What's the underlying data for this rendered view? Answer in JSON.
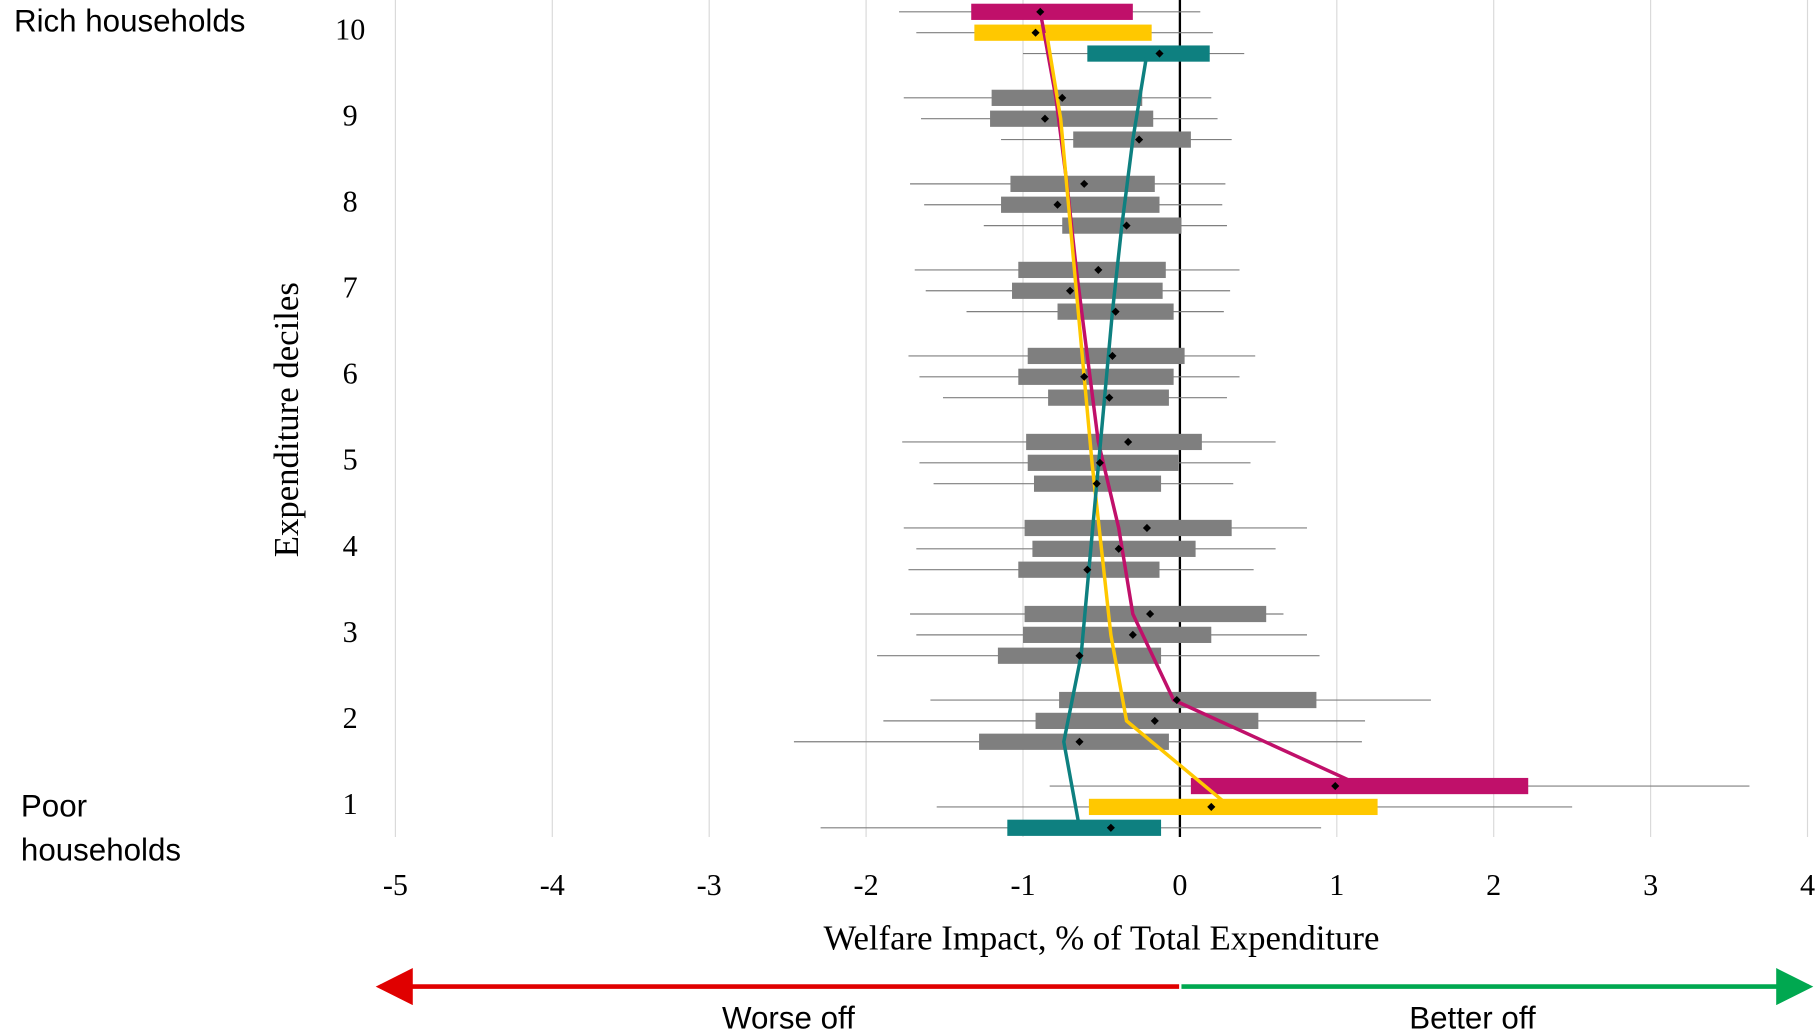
{
  "chart_data": {
    "type": "box",
    "xlabel": "Welfare Impact, % of Total Expenditure",
    "ylabel": "Expenditure deciles",
    "annotations": {
      "top": "Rich households",
      "bottom": [
        "Poor",
        "households"
      ],
      "left_arrow": "Worse off",
      "right_arrow": "Better off"
    },
    "categories": [
      "1",
      "2",
      "3",
      "4",
      "5",
      "6",
      "7",
      "8",
      "9",
      "10"
    ],
    "xlim": [
      -5,
      4
    ],
    "xticks": [
      -5,
      -4,
      -3,
      -2,
      -1,
      0,
      1,
      2,
      3,
      4
    ],
    "grid": true,
    "series": [
      {
        "colors": [
          "#c0106a",
          "#7f7f7f",
          "#7f7f7f",
          "#7f7f7f",
          "#7f7f7f",
          "#7f7f7f",
          "#7f7f7f",
          "#7f7f7f",
          "#7f7f7f",
          "#c0106a"
        ],
        "whisker_low": [
          -0.83,
          -1.59,
          -1.72,
          -1.76,
          -1.77,
          -1.73,
          -1.69,
          -1.72,
          -1.76,
          -1.79
        ],
        "box_low": [
          0.07,
          -0.77,
          -0.99,
          -0.99,
          -0.98,
          -0.97,
          -1.03,
          -1.08,
          -1.2,
          -1.33
        ],
        "mean": [
          0.99,
          -0.02,
          -0.19,
          -0.21,
          -0.33,
          -0.43,
          -0.52,
          -0.61,
          -0.75,
          -0.89
        ],
        "box_high": [
          2.22,
          0.87,
          0.55,
          0.33,
          0.14,
          0.03,
          -0.09,
          -0.16,
          -0.24,
          -0.3
        ],
        "whisker_high": [
          3.63,
          1.6,
          0.66,
          0.81,
          0.61,
          0.48,
          0.38,
          0.29,
          0.2,
          0.13
        ],
        "line_color": "#c0106a",
        "line_values": [
          1.16,
          -0.04,
          -0.3,
          -0.39,
          -0.52,
          -0.59,
          -0.66,
          -0.72,
          -0.79,
          -0.89
        ]
      },
      {
        "colors": [
          "#ffc800",
          "#7f7f7f",
          "#7f7f7f",
          "#7f7f7f",
          "#7f7f7f",
          "#7f7f7f",
          "#7f7f7f",
          "#7f7f7f",
          "#7f7f7f",
          "#ffc800"
        ],
        "whisker_low": [
          -1.55,
          -1.89,
          -1.68,
          -1.68,
          -1.66,
          -1.66,
          -1.62,
          -1.63,
          -1.65,
          -1.68
        ],
        "box_low": [
          -0.58,
          -0.92,
          -1.0,
          -0.94,
          -0.97,
          -1.03,
          -1.07,
          -1.14,
          -1.21,
          -1.31
        ],
        "mean": [
          0.2,
          -0.16,
          -0.3,
          -0.39,
          -0.51,
          -0.61,
          -0.7,
          -0.78,
          -0.86,
          -0.92
        ],
        "box_high": [
          1.26,
          0.5,
          0.2,
          0.1,
          -0.01,
          -0.04,
          -0.11,
          -0.13,
          -0.17,
          -0.18
        ],
        "whisker_high": [
          2.5,
          1.18,
          0.81,
          0.61,
          0.45,
          0.38,
          0.32,
          0.27,
          0.24,
          0.21
        ],
        "line_color": "#ffc800",
        "line_values": [
          0.32,
          -0.34,
          -0.44,
          -0.5,
          -0.56,
          -0.61,
          -0.66,
          -0.71,
          -0.76,
          -0.85
        ]
      },
      {
        "colors": [
          "#0e8080",
          "#7f7f7f",
          "#7f7f7f",
          "#7f7f7f",
          "#7f7f7f",
          "#7f7f7f",
          "#7f7f7f",
          "#7f7f7f",
          "#7f7f7f",
          "#0e8080"
        ],
        "whisker_low": [
          -2.29,
          -2.46,
          -1.93,
          -1.73,
          -1.57,
          -1.51,
          -1.36,
          -1.25,
          -1.14,
          -1.0
        ],
        "box_low": [
          -1.1,
          -1.28,
          -1.16,
          -1.03,
          -0.93,
          -0.84,
          -0.78,
          -0.75,
          -0.68,
          -0.59
        ],
        "mean": [
          -0.44,
          -0.64,
          -0.64,
          -0.59,
          -0.53,
          -0.45,
          -0.41,
          -0.34,
          -0.26,
          -0.13
        ],
        "box_high": [
          -0.12,
          -0.07,
          -0.12,
          -0.13,
          -0.12,
          -0.07,
          -0.04,
          0.01,
          0.07,
          0.19
        ],
        "whisker_high": [
          0.9,
          1.16,
          0.89,
          0.47,
          0.34,
          0.3,
          0.28,
          0.3,
          0.33,
          0.41
        ],
        "line_color": "#0e8080",
        "line_values": [
          -0.64,
          -0.74,
          -0.63,
          -0.58,
          -0.53,
          -0.48,
          -0.43,
          -0.37,
          -0.3,
          -0.21
        ]
      }
    ]
  }
}
